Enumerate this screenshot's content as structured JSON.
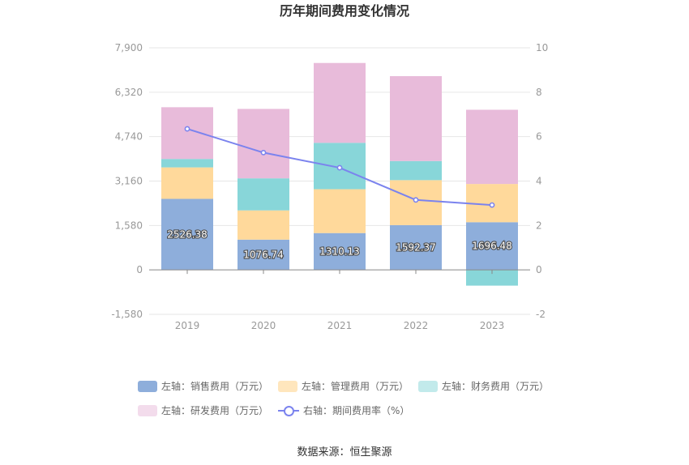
{
  "chart_data": {
    "type": "bar",
    "title": "历年期间费用变化情况",
    "categories": [
      "2019",
      "2020",
      "2021",
      "2022",
      "2023"
    ],
    "left_axis": {
      "min": -1580,
      "max": 7900,
      "ticks": [
        -1580,
        0,
        1580,
        3160,
        4740,
        6320,
        7900
      ],
      "tick_labels": [
        "-1,580",
        "0",
        "1,580",
        "3,160",
        "4,740",
        "6,320",
        "7,900"
      ]
    },
    "right_axis": {
      "min": -2,
      "max": 10,
      "ticks": [
        -2,
        0,
        2,
        4,
        6,
        8,
        10
      ],
      "tick_labels": [
        "-2",
        "0",
        "2",
        "4",
        "6",
        "8",
        "10"
      ]
    },
    "series": [
      {
        "name": "左轴：销售费用（万元）",
        "type": "bar",
        "axis": "left",
        "color": "#8eaedb",
        "values": [
          2526.38,
          1076.74,
          1310.13,
          1592.37,
          1696.48
        ],
        "data_labels": [
          "2526.38",
          "1076.74",
          "1310.13",
          "1592.37",
          "1696.48"
        ]
      },
      {
        "name": "左轴：管理费用（万元）",
        "type": "bar",
        "axis": "left",
        "color": "#ffd99b",
        "values": [
          1120,
          1040,
          1560,
          1600,
          1360
        ]
      },
      {
        "name": "左轴：财务费用（万元）",
        "type": "bar",
        "axis": "left",
        "color": "#88d6d9",
        "values": [
          300,
          1140,
          1650,
          680,
          -560
        ]
      },
      {
        "name": "左轴：研发费用（万元）",
        "type": "bar",
        "axis": "left",
        "color": "#e8bbda",
        "values": [
          1840,
          2470,
          2840,
          3020,
          2640
        ]
      },
      {
        "name": "右轴：期间费用率（%）",
        "type": "line",
        "axis": "right",
        "color": "#7b83ee",
        "values": [
          6.35,
          5.28,
          4.6,
          3.15,
          2.92
        ]
      }
    ],
    "legend_position": "bottom",
    "grid": true
  },
  "source_text": "数据来源：恒生聚源"
}
